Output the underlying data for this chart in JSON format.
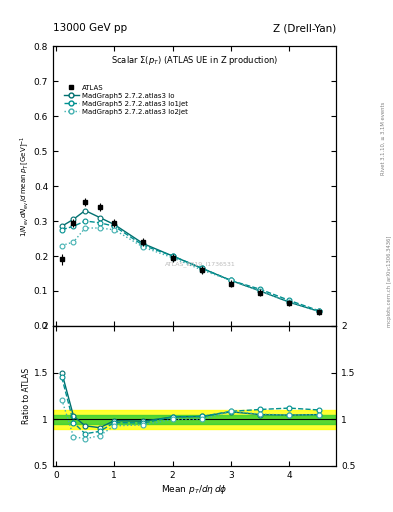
{
  "title_top": "13000 GeV pp",
  "title_right": "Z (Drell-Yan)",
  "plot_title": "Scalar Σ(p_{T}) (ATLAS UE in Z production)",
  "ylabel_main": "1/N_{ev} dN_{ev}/d mean p_{T} [GeV]^{-1}",
  "ylabel_ratio": "Ratio to ATLAS",
  "xlabel": "Mean p_{T}/dη dφ",
  "right_label_top": "Rivet 3.1.10, ≥ 3.1M events",
  "right_label_bottom": "mcplots.cern.ch [arXiv:1306.3436]",
  "watermark": "ATLAS_2019_I1736531",
  "atlas_x": [
    0.1,
    0.3,
    0.5,
    0.75,
    1.0,
    1.5,
    2.0,
    2.5,
    3.0,
    3.5,
    4.0,
    4.5
  ],
  "atlas_y": [
    0.19,
    0.295,
    0.355,
    0.34,
    0.295,
    0.24,
    0.195,
    0.16,
    0.12,
    0.095,
    0.065,
    0.04
  ],
  "lo_x": [
    0.1,
    0.3,
    0.5,
    0.75,
    1.0,
    1.5,
    2.0,
    2.5,
    3.0,
    3.5,
    4.0,
    4.5
  ],
  "lo_y": [
    0.285,
    0.305,
    0.33,
    0.31,
    0.29,
    0.235,
    0.2,
    0.165,
    0.13,
    0.1,
    0.068,
    0.042
  ],
  "lo1jet_x": [
    0.1,
    0.3,
    0.5,
    0.75,
    1.0,
    1.5,
    2.0,
    2.5,
    3.0,
    3.5,
    4.0,
    4.5
  ],
  "lo1jet_y": [
    0.275,
    0.285,
    0.3,
    0.295,
    0.285,
    0.23,
    0.2,
    0.165,
    0.13,
    0.105,
    0.073,
    0.044
  ],
  "lo2jet_x": [
    0.1,
    0.3,
    0.5,
    0.75,
    1.0,
    1.5,
    2.0,
    2.5,
    3.0,
    3.5,
    4.0,
    4.5
  ],
  "lo2jet_y": [
    0.23,
    0.24,
    0.28,
    0.28,
    0.275,
    0.225,
    0.195,
    0.16,
    0.13,
    0.1,
    0.068,
    0.042
  ],
  "ratio_lo_y": [
    1.5,
    1.035,
    0.93,
    0.91,
    0.985,
    0.98,
    1.025,
    1.03,
    1.08,
    1.05,
    1.045,
    1.05
  ],
  "ratio_lo1jet_y": [
    1.45,
    0.965,
    0.845,
    0.87,
    0.965,
    0.96,
    1.025,
    1.03,
    1.085,
    1.105,
    1.12,
    1.1
  ],
  "ratio_lo2jet_y": [
    1.21,
    0.815,
    0.79,
    0.825,
    0.93,
    0.94,
    1.0,
    1.0,
    1.085,
    1.055,
    1.045,
    1.05
  ],
  "atlas_err_y": [
    0.015,
    0.012,
    0.012,
    0.012,
    0.012,
    0.012,
    0.012,
    0.012,
    0.01,
    0.01,
    0.008,
    0.008
  ],
  "color_lo": "#007070",
  "color_lo1jet": "#009090",
  "color_lo2jet": "#40b0b0",
  "ylim_main": [
    0.0,
    0.8
  ],
  "ylim_ratio": [
    0.5,
    2.0
  ],
  "band_green_lo": 0.95,
  "band_green_hi": 1.05,
  "band_yellow_lo": 0.9,
  "band_yellow_hi": 1.1,
  "xticks": [
    0,
    1,
    2,
    3,
    4
  ],
  "xlim": [
    -0.05,
    4.8
  ]
}
